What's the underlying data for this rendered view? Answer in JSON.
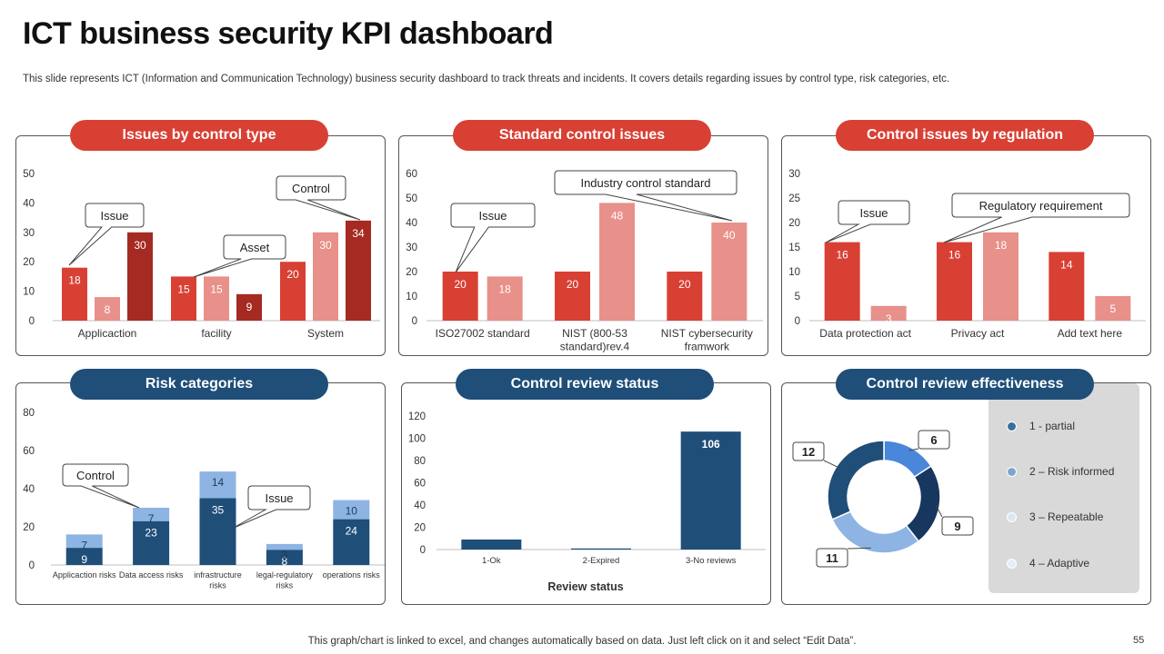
{
  "page": {
    "title": "ICT business security KPI dashboard",
    "subtitle": "This slide represents ICT (Information and Communication Technology) business security dashboard to track threats and incidents. It covers details regarding issues by control type, risk categories, etc.",
    "footer": "This graph/chart is linked to excel, and changes automatically based on data. Just left click on it and select “Edit Data”.",
    "page_number": "55"
  },
  "colors": {
    "red": "#d84034",
    "light_red": "#e8908a",
    "dark_red": "#a52a22",
    "navy": "#1f4e79",
    "light_blue": "#8db4e2"
  },
  "panels": {
    "p1": "Issues by control type",
    "p2": "Standard control issues",
    "p3": "Control issues by regulation",
    "p4": "Risk categories",
    "p5": "Control review status",
    "p6": "Control review effectiveness"
  },
  "chart_data": [
    {
      "type": "bar",
      "title": "Issues by control type",
      "categories": [
        "Applicaction",
        "facility",
        "System"
      ],
      "series": [
        {
          "values": [
            18,
            15,
            20
          ],
          "color": "#d84034"
        },
        {
          "values": [
            8,
            15,
            30
          ],
          "color": "#e8908a"
        },
        {
          "values": [
            30,
            9,
            34
          ],
          "color": "#a52a22"
        }
      ],
      "ylim": [
        0,
        50
      ],
      "yticks": [
        0,
        10,
        20,
        30,
        40,
        50
      ],
      "callouts": [
        "Issue",
        "Asset",
        "Control"
      ]
    },
    {
      "type": "bar",
      "title": "Standard control issues",
      "categories": [
        "ISO27002 standard",
        "NIST (800-53 standard)rev.4",
        "NIST cybersecurity framwork"
      ],
      "category_lines": [
        [
          "ISO27002 standard"
        ],
        [
          "NIST (800-53",
          "standard)rev.4"
        ],
        [
          "NIST cybersecurity",
          "framwork"
        ]
      ],
      "series": [
        {
          "values": [
            20,
            20,
            20
          ],
          "color": "#d84034"
        },
        {
          "values": [
            18,
            48,
            40
          ],
          "color": "#e8908a"
        }
      ],
      "ylim": [
        0,
        60
      ],
      "yticks": [
        0,
        10,
        20,
        30,
        40,
        50,
        60
      ],
      "callouts": [
        "Issue",
        "Industry control standard"
      ]
    },
    {
      "type": "bar",
      "title": "Control issues by regulation",
      "categories": [
        "Data protection act",
        "Privacy act",
        "Add text here"
      ],
      "series": [
        {
          "values": [
            16,
            16,
            14
          ],
          "color": "#d84034"
        },
        {
          "values": [
            3,
            18,
            5
          ],
          "color": "#e8908a"
        }
      ],
      "ylim": [
        0,
        30
      ],
      "yticks": [
        0,
        5,
        10,
        15,
        20,
        25,
        30
      ],
      "callouts": [
        "Issue",
        "Regulatory requirement"
      ]
    },
    {
      "type": "bar",
      "stacked": true,
      "title": "Risk categories",
      "categories": [
        "Applicaction risks",
        "Data access risks",
        "infrastructure risks",
        "legal-regulatory risks",
        "operations risks"
      ],
      "category_lines": [
        [
          "Applicaction risks"
        ],
        [
          "Data access risks"
        ],
        [
          "infrastructure",
          "risks"
        ],
        [
          "legal-regulatory",
          "risks"
        ],
        [
          "operations risks"
        ]
      ],
      "series": [
        {
          "values": [
            9,
            23,
            35,
            8,
            24
          ],
          "color": "#1f4e79"
        },
        {
          "values": [
            7,
            7,
            14,
            3,
            10
          ],
          "color": "#8db4e2"
        }
      ],
      "ylim": [
        0,
        80
      ],
      "yticks": [
        0,
        20,
        40,
        60,
        80
      ],
      "callouts": [
        "Control",
        "Issue"
      ]
    },
    {
      "type": "bar",
      "title": "Control review status",
      "categories": [
        "1-Ok",
        "2-Expired",
        "3-No reviews"
      ],
      "values": [
        9,
        1,
        106
      ],
      "labels": [
        "",
        "",
        "106"
      ],
      "color": "#1f4e79",
      "xlabel": "Review status",
      "ylim": [
        0,
        120
      ],
      "yticks": [
        0,
        20,
        40,
        60,
        80,
        100,
        120
      ]
    },
    {
      "type": "pie",
      "donut": true,
      "title": "Control review effectiveness",
      "labels": [
        "1 - partial",
        "2 – Risk informed",
        "3 – Repeatable",
        "4 – Adaptive"
      ],
      "values": [
        6,
        9,
        11,
        12
      ],
      "colors": [
        "#4a86d9",
        "#17375e",
        "#8db4e2",
        "#1f4e79"
      ],
      "legend_colors": [
        "#3a6f9a",
        "#7ea6cc",
        "#dce7f3",
        "#e8eef5"
      ]
    }
  ]
}
